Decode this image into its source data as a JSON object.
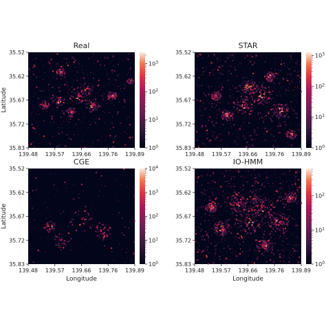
{
  "figure": {
    "x_label": "Longitude",
    "y_label": "Latitude"
  },
  "chart_data": [
    {
      "type": "heatmap",
      "title": "Real",
      "x_ticks": [
        "139.48",
        "139.57",
        "139.66",
        "139.76",
        "139.89"
      ],
      "y_ticks": [
        "35.52",
        "35.62",
        "35.67",
        "35.72",
        "35.83"
      ],
      "xlabel": "",
      "ylabel": "Latitude",
      "colorbar": {
        "scale": "log",
        "ticks": [
          "10^0",
          "10^1",
          "10^2",
          "10^3"
        ],
        "min_exp": 0,
        "max_exp": 3.4
      },
      "density": 1.0,
      "hotspots": [
        [
          0.28,
          0.5,
          0.06
        ],
        [
          0.47,
          0.45,
          0.09
        ],
        [
          0.55,
          0.38,
          0.07
        ],
        [
          0.6,
          0.55,
          0.07
        ],
        [
          0.4,
          0.62,
          0.05
        ],
        [
          0.78,
          0.45,
          0.05
        ],
        [
          0.15,
          0.55,
          0.05
        ],
        [
          0.3,
          0.2,
          0.04
        ],
        [
          0.95,
          0.3,
          0.03
        ]
      ]
    },
    {
      "type": "heatmap",
      "title": "STAR",
      "x_ticks": [
        "139.48",
        "139.57",
        "139.66",
        "139.76",
        "139.89"
      ],
      "y_ticks": [
        "35.52",
        "35.62",
        "35.67",
        "35.72",
        "35.83"
      ],
      "xlabel": "",
      "ylabel": "",
      "colorbar": {
        "scale": "log",
        "ticks": [
          "10^0",
          "10^1",
          "10^2",
          "10^3"
        ],
        "min_exp": 0,
        "max_exp": 3.1
      },
      "density": 1.4,
      "hotspots": [
        [
          0.45,
          0.55,
          0.1
        ],
        [
          0.62,
          0.45,
          0.1
        ],
        [
          0.5,
          0.35,
          0.08
        ],
        [
          0.8,
          0.6,
          0.08
        ],
        [
          0.3,
          0.65,
          0.06
        ],
        [
          0.7,
          0.25,
          0.05
        ],
        [
          0.9,
          0.85,
          0.05
        ],
        [
          0.2,
          0.45,
          0.05
        ]
      ]
    },
    {
      "type": "heatmap",
      "title": "CGE",
      "x_ticks": [
        "139.48",
        "139.57",
        "139.66",
        "139.76",
        "139.89"
      ],
      "y_ticks": [
        "35.52",
        "35.62",
        "35.67",
        "35.72",
        "35.83"
      ],
      "xlabel": "Longitude",
      "ylabel": "Latitude",
      "colorbar": {
        "scale": "log",
        "ticks": [
          "10^0",
          "10^1",
          "10^2",
          "10^3",
          "10^4"
        ],
        "min_exp": 0,
        "max_exp": 4.0
      },
      "density": 0.35,
      "hotspots": [
        [
          0.5,
          0.55,
          0.12
        ],
        [
          0.3,
          0.75,
          0.08
        ],
        [
          0.7,
          0.65,
          0.08
        ],
        [
          0.2,
          0.6,
          0.06
        ]
      ]
    },
    {
      "type": "heatmap",
      "title": "IO-HMM",
      "x_ticks": [
        "139.48",
        "139.57",
        "139.66",
        "139.76",
        "139.89"
      ],
      "y_ticks": [
        "35.52",
        "35.62",
        "35.67",
        "35.72",
        "35.83"
      ],
      "xlabel": "Longitude",
      "ylabel": "",
      "colorbar": {
        "scale": "log",
        "ticks": [
          "10^0",
          "10^1",
          "10^2"
        ],
        "min_exp": 0,
        "max_exp": 2.8
      },
      "density": 1.8,
      "hotspots": [
        [
          0.5,
          0.55,
          0.14
        ],
        [
          0.62,
          0.4,
          0.12
        ],
        [
          0.4,
          0.35,
          0.1
        ],
        [
          0.78,
          0.55,
          0.1
        ],
        [
          0.25,
          0.62,
          0.08
        ],
        [
          0.65,
          0.8,
          0.08
        ],
        [
          0.15,
          0.4,
          0.06
        ],
        [
          0.9,
          0.3,
          0.06
        ]
      ]
    }
  ]
}
